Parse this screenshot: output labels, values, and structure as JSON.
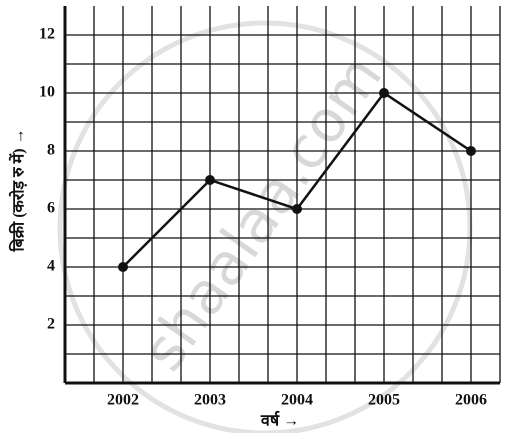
{
  "chart_data": {
    "type": "line",
    "categories": [
      "2002",
      "2003",
      "2004",
      "2005",
      "2006"
    ],
    "series": [
      {
        "color": "#111111",
        "values": [
          4,
          7,
          6,
          10,
          8
        ]
      }
    ],
    "ylim": [
      0,
      13
    ],
    "yticks": [
      2,
      4,
      6,
      8,
      10,
      12
    ],
    "grid": true,
    "xlabel": "वर्ष →",
    "ylabel": "बिक्री (करोड़ रु में) →",
    "watermark": "shaalaa.com"
  }
}
